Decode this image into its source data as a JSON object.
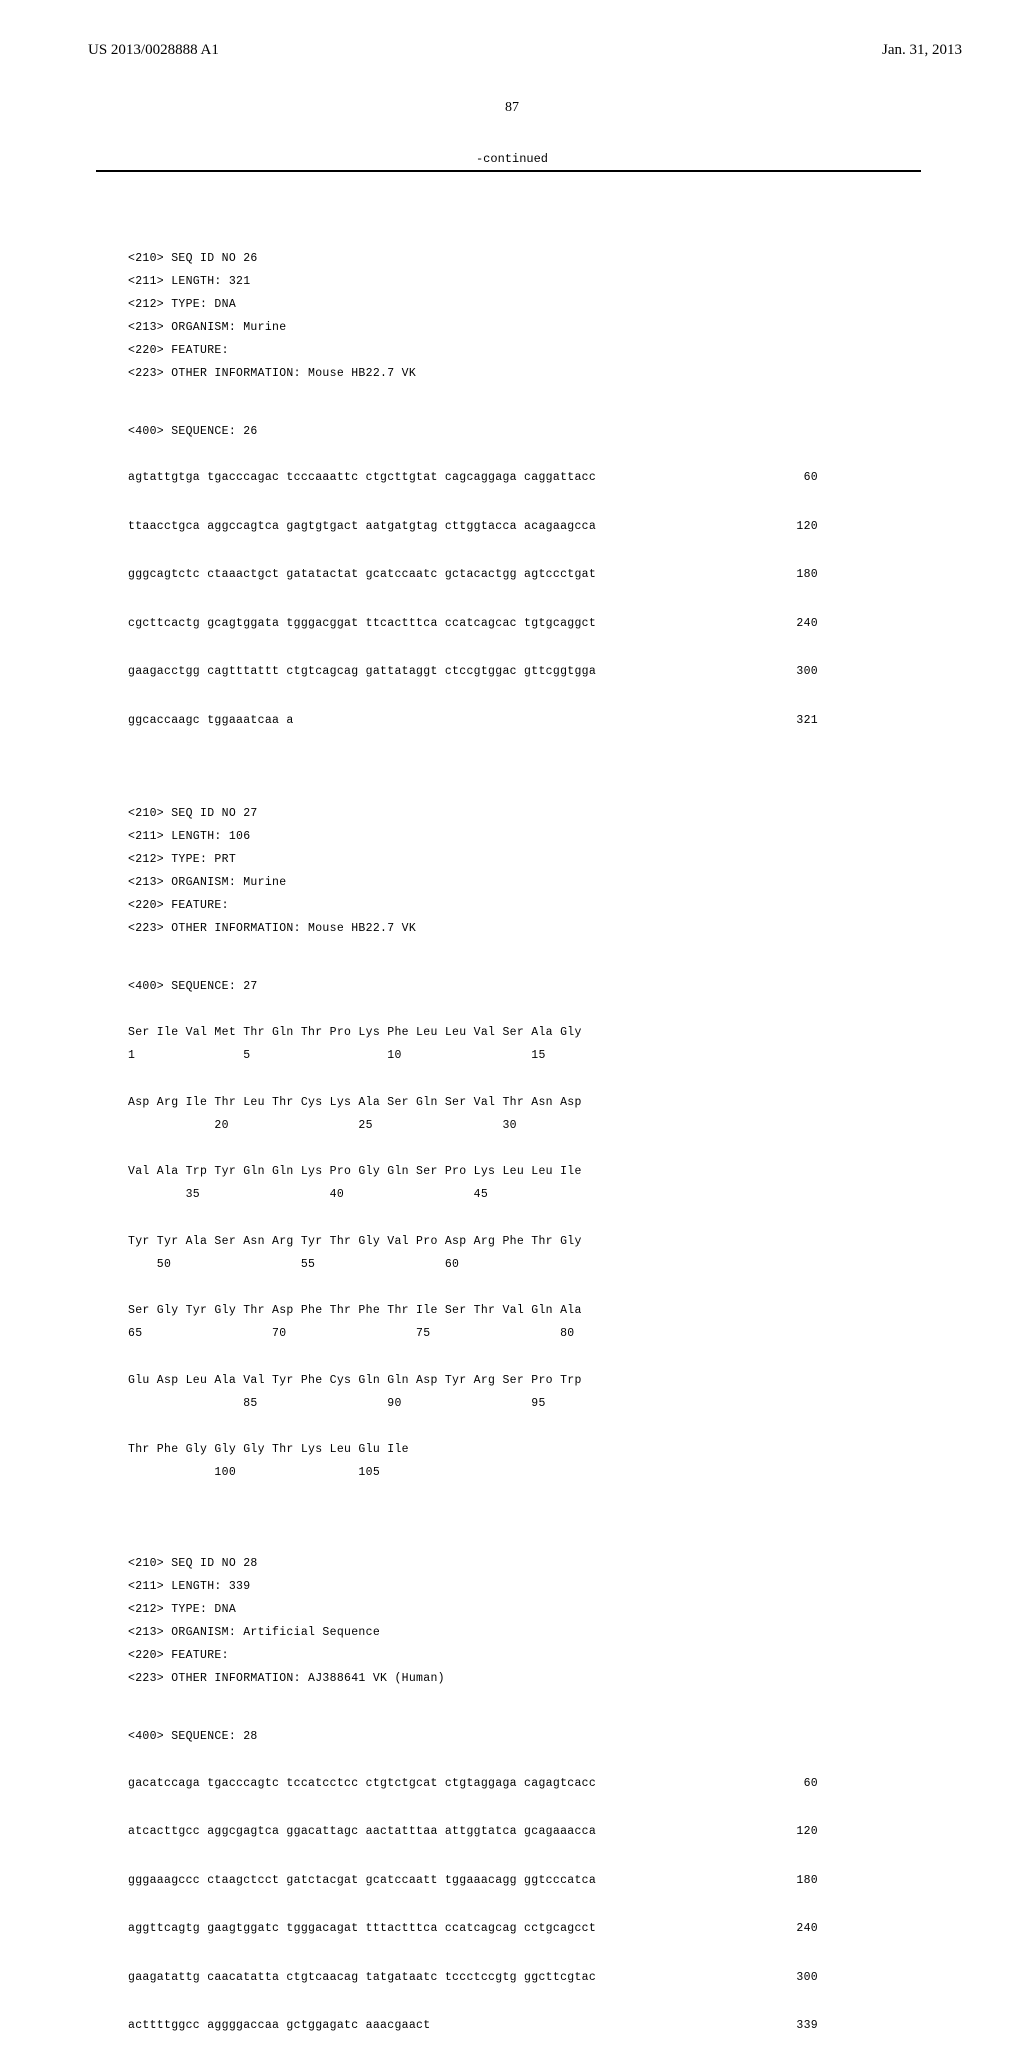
{
  "header": {
    "publication_number": "US 2013/0028888 A1",
    "publication_date": "Jan. 31, 2013",
    "page_number": "87",
    "continued_label": "-continued"
  },
  "seq26": {
    "h1": "<210> SEQ ID NO 26",
    "h2": "<211> LENGTH: 321",
    "h3": "<212> TYPE: DNA",
    "h4": "<213> ORGANISM: Murine",
    "h5": "<220> FEATURE:",
    "h6": "<223> OTHER INFORMATION: Mouse HB22.7 VK",
    "seqlabel": "<400> SEQUENCE: 26",
    "l1": "agtattgtga tgacccagac tcccaaattc ctgcttgtat cagcaggaga caggattacc",
    "n1": "60",
    "l2": "ttaacctgca aggccagtca gagtgtgact aatgatgtag cttggtacca acagaagcca",
    "n2": "120",
    "l3": "gggcagtctc ctaaactgct gatatactat gcatccaatc gctacactgg agtccctgat",
    "n3": "180",
    "l4": "cgcttcactg gcagtggata tgggacggat ttcactttca ccatcagcac tgtgcaggct",
    "n4": "240",
    "l5": "gaagacctgg cagtttattt ctgtcagcag gattataggt ctccgtggac gttcggtgga",
    "n5": "300",
    "l6": "ggcaccaagc tggaaatcaa a",
    "n6": "321"
  },
  "seq27": {
    "h1": "<210> SEQ ID NO 27",
    "h2": "<211> LENGTH: 106",
    "h3": "<212> TYPE: PRT",
    "h4": "<213> ORGANISM: Murine",
    "h5": "<220> FEATURE:",
    "h6": "<223> OTHER INFORMATION: Mouse HB22.7 VK",
    "seqlabel": "<400> SEQUENCE: 27",
    "p1a": "Ser Ile Val Met Thr Gln Thr Pro Lys Phe Leu Leu Val Ser Ala Gly",
    "p1b": "1               5                   10                  15",
    "p2a": "Asp Arg Ile Thr Leu Thr Cys Lys Ala Ser Gln Ser Val Thr Asn Asp",
    "p2b": "            20                  25                  30",
    "p3a": "Val Ala Trp Tyr Gln Gln Lys Pro Gly Gln Ser Pro Lys Leu Leu Ile",
    "p3b": "        35                  40                  45",
    "p4a": "Tyr Tyr Ala Ser Asn Arg Tyr Thr Gly Val Pro Asp Arg Phe Thr Gly",
    "p4b": "    50                  55                  60",
    "p5a": "Ser Gly Tyr Gly Thr Asp Phe Thr Phe Thr Ile Ser Thr Val Gln Ala",
    "p5b": "65                  70                  75                  80",
    "p6a": "Glu Asp Leu Ala Val Tyr Phe Cys Gln Gln Asp Tyr Arg Ser Pro Trp",
    "p6b": "                85                  90                  95",
    "p7a": "Thr Phe Gly Gly Gly Thr Lys Leu Glu Ile",
    "p7b": "            100                 105"
  },
  "seq28": {
    "h1": "<210> SEQ ID NO 28",
    "h2": "<211> LENGTH: 339",
    "h3": "<212> TYPE: DNA",
    "h4": "<213> ORGANISM: Artificial Sequence",
    "h5": "<220> FEATURE:",
    "h6": "<223> OTHER INFORMATION: AJ388641 VK (Human)",
    "seqlabel": "<400> SEQUENCE: 28",
    "l1": "gacatccaga tgacccagtc tccatcctcc ctgtctgcat ctgtaggaga cagagtcacc",
    "n1": "60",
    "l2": "atcacttgcc aggcgagtca ggacattagc aactatttaa attggtatca gcagaaacca",
    "n2": "120",
    "l3": "gggaaagccc ctaagctcct gatctacgat gcatccaatt tggaaacagg ggtcccatca",
    "n3": "180",
    "l4": "aggttcagtg gaagtggatc tgggacagat tttactttca ccatcagcag cctgcagcct",
    "n4": "240",
    "l5": "gaagatattg caacatatta ctgtcaacag tatgataatc tccctccgtg ggcttcgtac",
    "n5": "300",
    "l6": "acttttggcc aggggaccaa gctggagatc aaacgaact",
    "n6": "339"
  }
}
